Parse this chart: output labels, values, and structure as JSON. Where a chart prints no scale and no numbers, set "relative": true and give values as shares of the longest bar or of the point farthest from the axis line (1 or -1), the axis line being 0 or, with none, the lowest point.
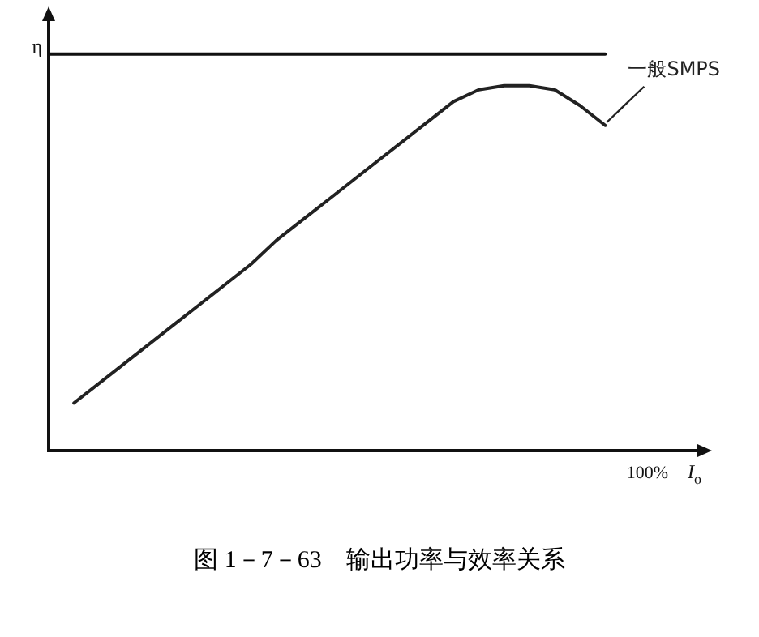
{
  "chart_data": {
    "type": "line",
    "title": "图 1－7－63　输出功率与效率关系",
    "xlabel": "I$_{o}$",
    "ylabel": "η",
    "relative": true,
    "marker": "none",
    "annotations": [
      "100%"
    ],
    "categories": [
      null,
      null,
      null,
      null,
      null,
      null,
      null,
      null,
      null,
      null,
      null,
      null,
      null,
      null,
      null,
      null,
      null,
      null,
      null,
      null,
      null,
      null,
      null,
      null,
      null,
      null
    ],
    "series": [
      {
        "color": "#111111",
        "values": [
          1,
          1,
          1,
          1,
          1,
          1,
          1,
          1,
          1,
          1,
          1,
          1,
          1,
          1,
          1,
          1,
          1,
          1,
          1,
          1,
          1,
          1,
          1,
          null,
          null,
          null
        ]
      },
      {
        "name": "一般SMPS",
        "color": "#222222",
        "values": [
          null,
          0.12,
          0.17,
          0.22,
          0.27,
          0.32,
          0.37,
          0.42,
          0.47,
          0.53,
          0.58,
          0.63,
          0.68,
          0.73,
          0.78,
          0.83,
          0.88,
          0.91,
          0.92,
          0.92,
          0.91,
          0.87,
          0.82,
          null,
          null,
          null
        ]
      }
    ]
  }
}
